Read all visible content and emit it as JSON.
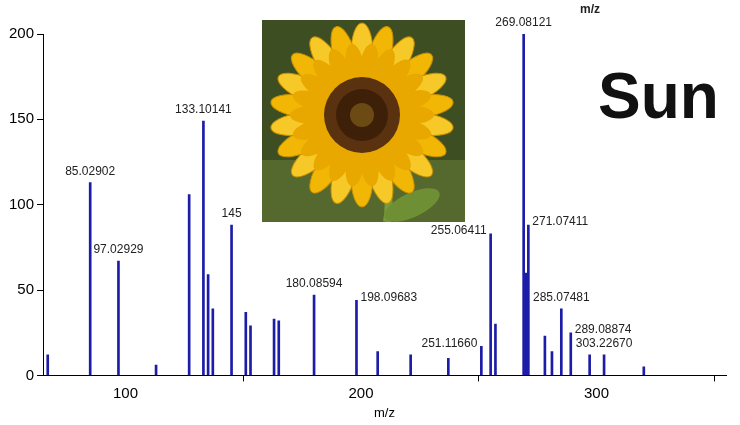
{
  "chart_data": {
    "type": "bar",
    "title": "Sun",
    "x_label": "m/z",
    "x": [
      67,
      85.02902,
      97.02929,
      113,
      127.05,
      133.10141,
      135.1,
      137.1,
      145.05,
      151.1,
      153.1,
      163.1,
      165.1,
      180.08594,
      198.09683,
      207.1,
      221.1,
      237.1,
      251.1166,
      255.06411,
      257.1,
      269.08121,
      270.08,
      271.07411,
      278.1,
      281.1,
      285.07481,
      289.08874,
      297.1,
      303.2267,
      320.1
    ],
    "values": [
      12,
      113,
      67,
      6,
      106,
      149,
      59,
      39,
      88,
      37,
      29,
      33,
      32,
      47,
      44,
      14,
      12,
      10,
      17,
      83,
      30,
      200,
      60,
      88,
      23,
      14,
      39,
      25,
      12,
      12,
      5
    ],
    "color": "#1c1ca8",
    "xlim": [
      65,
      355
    ],
    "xticks": [
      100,
      200,
      300
    ],
    "ylim": [
      0,
      200
    ],
    "yticks": [
      0,
      50,
      100,
      150,
      200
    ],
    "grid": false,
    "annotations": [
      {
        "text": "m/z"
      },
      {
        "text": "85.02902",
        "x": 85.02902,
        "y": 113
      },
      {
        "text": "97.02929",
        "x": 97.02929,
        "y": 67
      },
      {
        "text": "133.10141",
        "x": 133.10141,
        "y": 149
      },
      {
        "text": "145",
        "x": 145.05,
        "y": 88
      },
      {
        "text": "180.08594",
        "x": 180.08594,
        "y": 47
      },
      {
        "text": "198.09683",
        "x": 198.09683,
        "y": 44
      },
      {
        "text": "251.11660",
        "x": 251.1166,
        "y": 17
      },
      {
        "text": "255.06411",
        "x": 255.06411,
        "y": 83
      },
      {
        "text": "269.08121",
        "x": 269.08121,
        "y": 200
      },
      {
        "text": "271.07411",
        "x": 271.07411,
        "y": 88
      },
      {
        "text": "285.07481",
        "x": 285.07481,
        "y": 39
      },
      {
        "text": "289.08874",
        "x": 289.08874,
        "y": 25
      },
      {
        "text": "303.22670",
        "x": 303.2267,
        "y": 12
      }
    ]
  }
}
